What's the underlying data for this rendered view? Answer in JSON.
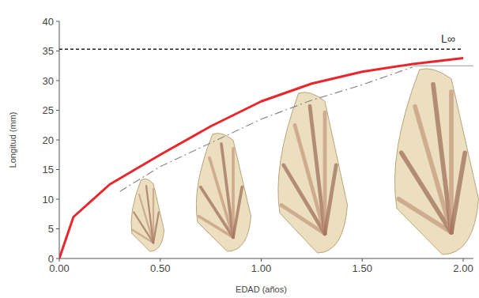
{
  "chart_data": {
    "type": "line",
    "x_label": "EDAD (años)",
    "y_label": "Longitud (mm)",
    "annotation": "L∞",
    "xlim": [
      0,
      2.05
    ],
    "ylim": [
      0,
      40
    ],
    "xticks": [
      {
        "value": 0,
        "label": "0.00"
      },
      {
        "value": 0.5,
        "label": "0.50"
      },
      {
        "value": 1,
        "label": "1.00"
      },
      {
        "value": 1.5,
        "label": "1.50"
      },
      {
        "value": 2,
        "label": "2.00"
      }
    ],
    "yticks": [
      0,
      5,
      10,
      15,
      20,
      25,
      30,
      35,
      40
    ],
    "grid": false,
    "series": [
      {
        "color": "#e8262b",
        "line_style": "solid",
        "x": [
          0,
          0.07,
          0.25,
          0.5,
          0.75,
          1,
          1.25,
          1.5,
          1.75,
          2
        ],
        "values": [
          0,
          7,
          12.5,
          17.5,
          22.3,
          26.5,
          29.5,
          31.5,
          32.8,
          33.8
        ]
      },
      {
        "color": "#222222",
        "line_style": "dashed",
        "x": [
          0,
          2
        ],
        "values": [
          35.3,
          35.3
        ]
      },
      {
        "color": "#888888",
        "line_style": "dashdot",
        "x": [
          0.3,
          0.5,
          0.75,
          1,
          1.25,
          1.5,
          1.75
        ],
        "values": [
          11.3,
          15.5,
          19.5,
          23.5,
          26.7,
          29.3,
          32.3
        ]
      },
      {
        "color": "#9a9a9a",
        "line_style": "solid",
        "x": [
          1.75,
          2.05
        ],
        "values": [
          32.5,
          32.5
        ]
      }
    ]
  }
}
